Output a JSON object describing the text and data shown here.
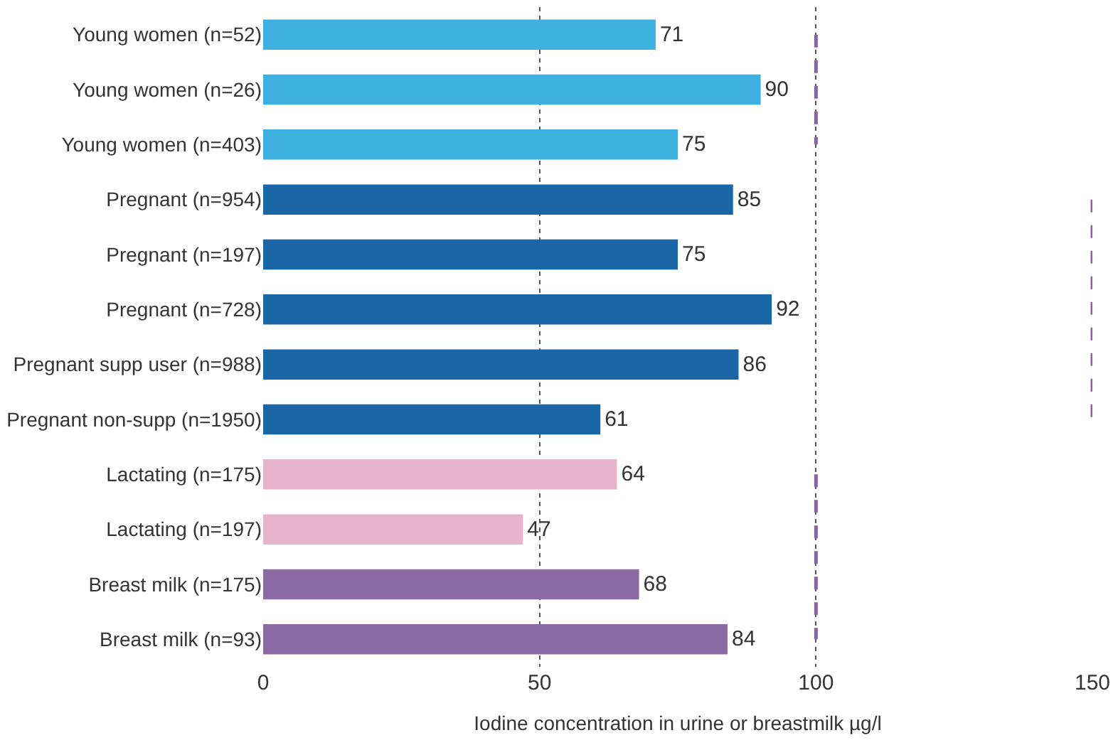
{
  "chart_data": {
    "type": "bar",
    "orientation": "horizontal",
    "xlabel": "Iodine concentration in urine or breastmilk µg/l",
    "categories": [
      "Young women (n=52)",
      "Young women (n=26)",
      "Young women (n=403)",
      "Pregnant (n=954)",
      "Pregnant (n=197)",
      "Pregnant (n=728)",
      "Pregnant supp user (n=988)",
      "Pregnant non-supp (n=1950)",
      "Lactating (n=175)",
      "Lactating (n=197)",
      "Breast milk (n=175)",
      "Breast milk (n=93)"
    ],
    "series": [
      {
        "values": [
          71,
          90,
          75,
          85,
          75,
          92,
          86,
          61,
          64,
          47,
          68,
          84
        ],
        "value_labels": [
          "71",
          "90",
          "75",
          "85",
          "75",
          "92",
          "86",
          "61",
          "64",
          "47",
          "68",
          "84"
        ],
        "colors": [
          "#3db0e0",
          "#3db0e0",
          "#3db0e0",
          "#1a65a6",
          "#1a65a6",
          "#1a65a6",
          "#1a65a6",
          "#1a65a6",
          "#e8b4cb",
          "#e8b4cb",
          "#8c6aa3",
          "#8c6aa3"
        ]
      },
      {
        "type": "line",
        "color": "#8c5fa8",
        "line_style": "dashed",
        "marker": "none",
        "values": [
          100,
          100,
          100,
          null,
          null,
          null,
          null,
          null,
          100,
          100,
          100,
          100
        ]
      },
      {
        "type": "line",
        "color": "#8c5fa8",
        "line_style": "dashed",
        "marker": "none",
        "values": [
          null,
          null,
          null,
          150,
          150,
          150,
          150,
          150,
          null,
          null,
          null,
          null
        ]
      }
    ],
    "xlim": [
      0,
      150
    ],
    "xticks": [
      0,
      50,
      100,
      150
    ],
    "grid": "x",
    "legend": false
  }
}
